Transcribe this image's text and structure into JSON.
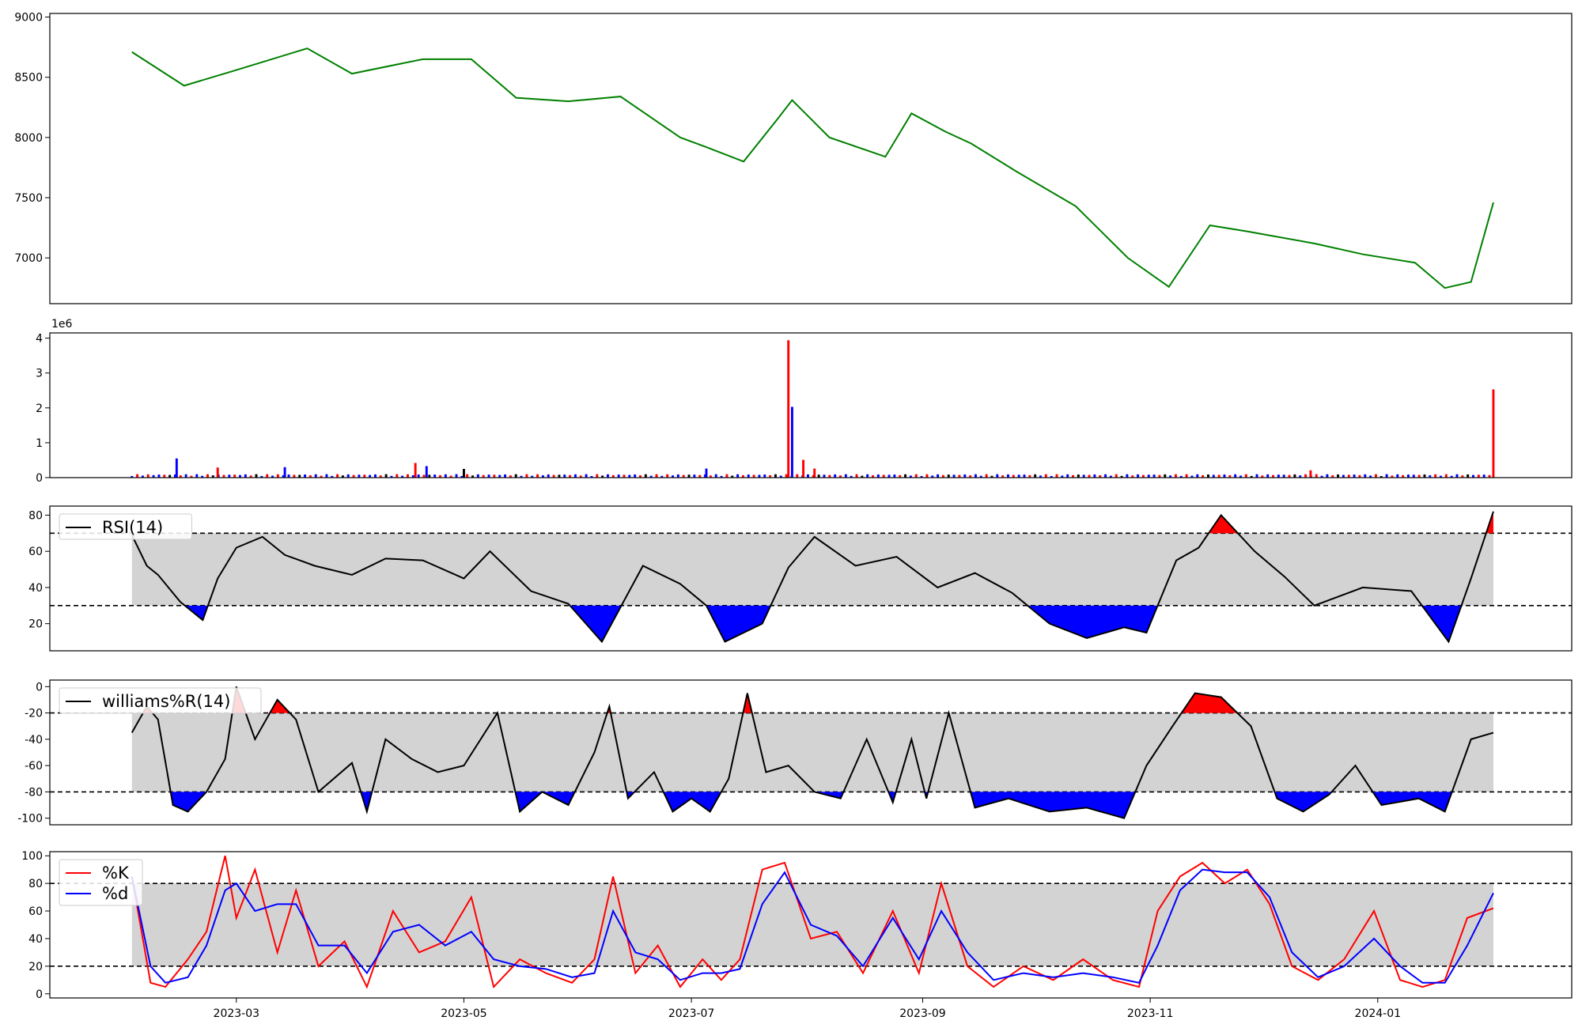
{
  "chart_data": [
    {
      "type": "line",
      "title": "",
      "xlabel": "",
      "ylabel": "",
      "ylim": [
        6620,
        9030
      ],
      "yticks": [
        7000,
        7500,
        8000,
        8500,
        9000
      ],
      "grid": false,
      "colors": {
        "line": "#008000"
      },
      "series": [
        {
          "x": [
            "2023-02-01",
            "2023-02-15",
            "2023-03-01",
            "2023-03-20",
            "2023-04-01",
            "2023-04-20",
            "2023-05-03",
            "2023-05-15",
            "2023-05-29",
            "2023-06-12",
            "2023-06-28",
            "2023-07-05",
            "2023-07-15",
            "2023-07-24",
            "2023-07-28",
            "2023-08-07",
            "2023-08-22",
            "2023-08-29",
            "2023-09-07",
            "2023-09-14",
            "2023-09-26",
            "2023-10-12",
            "2023-10-26",
            "2023-11-06",
            "2023-11-17",
            "2023-11-27",
            "2023-12-15",
            "2023-12-28",
            "2024-01-11",
            "2024-01-19",
            "2024-01-26",
            "2024-02-01"
          ],
          "values": [
            8710,
            8430,
            8560,
            8740,
            8530,
            8650,
            8650,
            8330,
            8300,
            8340,
            8000,
            7920,
            7800,
            8150,
            8310,
            8000,
            7840,
            8200,
            8050,
            7950,
            7720,
            7430,
            7000,
            6760,
            7270,
            7220,
            7120,
            7030,
            6960,
            6750,
            6800,
            7460
          ]
        }
      ]
    },
    {
      "type": "bar",
      "title": "",
      "xlabel": "",
      "ylabel": "",
      "ylim": [
        0,
        4150000
      ],
      "yticks": [
        0,
        1,
        2,
        3,
        4
      ],
      "yscale_label": "1e6",
      "colors": {
        "up": "#ff0000",
        "down": "#0000ff",
        "flat": "#000000"
      },
      "bars": [
        {
          "x": "2023-02-13",
          "value": 550000,
          "color": "down"
        },
        {
          "x": "2023-02-24",
          "value": 290000,
          "color": "up"
        },
        {
          "x": "2023-03-14",
          "value": 300000,
          "color": "down"
        },
        {
          "x": "2023-04-18",
          "value": 420000,
          "color": "up"
        },
        {
          "x": "2023-04-21",
          "value": 330000,
          "color": "down"
        },
        {
          "x": "2023-05-01",
          "value": 250000,
          "color": "flat"
        },
        {
          "x": "2023-07-05",
          "value": 260000,
          "color": "down"
        },
        {
          "x": "2023-07-27",
          "value": 3940000,
          "color": "up"
        },
        {
          "x": "2023-07-28",
          "value": 2030000,
          "color": "down"
        },
        {
          "x": "2023-07-31",
          "value": 510000,
          "color": "up"
        },
        {
          "x": "2023-08-03",
          "value": 260000,
          "color": "up"
        },
        {
          "x": "2023-12-14",
          "value": 210000,
          "color": "up"
        },
        {
          "x": "2024-02-01",
          "value": 2530000,
          "color": "up"
        }
      ],
      "baseline_volume": 90000
    },
    {
      "type": "line",
      "title": "",
      "xlabel": "",
      "ylabel": "",
      "ylim": [
        5,
        85
      ],
      "yticks": [
        20,
        40,
        60,
        80
      ],
      "thresholds": [
        30,
        70
      ],
      "legend": {
        "entries": [
          "RSI(14)"
        ],
        "placement": "upper-left"
      },
      "colors": {
        "line": "#000000",
        "band": "#d3d3d3",
        "overbought": "#ff0000",
        "oversold": "#0000ff"
      },
      "series": [
        {
          "name": "RSI(14)",
          "x": [
            "2023-02-01",
            "2023-02-05",
            "2023-02-08",
            "2023-02-14",
            "2023-02-20",
            "2023-02-24",
            "2023-03-01",
            "2023-03-08",
            "2023-03-14",
            "2023-03-22",
            "2023-04-01",
            "2023-04-10",
            "2023-04-20",
            "2023-05-01",
            "2023-05-08",
            "2023-05-19",
            "2023-05-29",
            "2023-06-07",
            "2023-06-18",
            "2023-06-28",
            "2023-07-05",
            "2023-07-10",
            "2023-07-20",
            "2023-07-27",
            "2023-08-03",
            "2023-08-14",
            "2023-08-25",
            "2023-09-05",
            "2023-09-15",
            "2023-09-25",
            "2023-10-05",
            "2023-10-15",
            "2023-10-25",
            "2023-10-31",
            "2023-11-08",
            "2023-11-14",
            "2023-11-20",
            "2023-11-29",
            "2023-12-07",
            "2023-12-15",
            "2023-12-28",
            "2024-01-10",
            "2024-01-20",
            "2024-01-26",
            "2024-02-01"
          ],
          "values": [
            69,
            52,
            47,
            32,
            22,
            45,
            62,
            68,
            58,
            52,
            47,
            56,
            55,
            45,
            60,
            38,
            31,
            10,
            52,
            42,
            30,
            10,
            20,
            51,
            68,
            52,
            57,
            40,
            48,
            37,
            20,
            12,
            18,
            15,
            55,
            62,
            80,
            60,
            46,
            30,
            40,
            38,
            10,
            45,
            82
          ]
        }
      ]
    },
    {
      "type": "line",
      "title": "",
      "xlabel": "",
      "ylabel": "",
      "ylim": [
        -105,
        5
      ],
      "yticks": [
        0,
        -20,
        -40,
        -60,
        -80,
        -100
      ],
      "thresholds": [
        -20,
        -80
      ],
      "legend": {
        "entries": [
          "williams%R(14)"
        ],
        "placement": "upper-left"
      },
      "colors": {
        "line": "#000000",
        "band": "#d3d3d3",
        "overbought": "#ff0000",
        "oversold": "#0000ff"
      },
      "series": [
        {
          "name": "williams%R(14)",
          "x": [
            "2023-02-01",
            "2023-02-05",
            "2023-02-08",
            "2023-02-12",
            "2023-02-16",
            "2023-02-21",
            "2023-02-26",
            "2023-03-01",
            "2023-03-06",
            "2023-03-12",
            "2023-03-17",
            "2023-03-23",
            "2023-04-01",
            "2023-04-05",
            "2023-04-10",
            "2023-04-17",
            "2023-04-24",
            "2023-05-01",
            "2023-05-10",
            "2023-05-16",
            "2023-05-22",
            "2023-05-29",
            "2023-06-05",
            "2023-06-09",
            "2023-06-14",
            "2023-06-21",
            "2023-06-26",
            "2023-07-01",
            "2023-07-06",
            "2023-07-11",
            "2023-07-16",
            "2023-07-21",
            "2023-07-27",
            "2023-08-03",
            "2023-08-10",
            "2023-08-17",
            "2023-08-24",
            "2023-08-29",
            "2023-09-02",
            "2023-09-08",
            "2023-09-15",
            "2023-09-24",
            "2023-10-05",
            "2023-10-15",
            "2023-10-25",
            "2023-10-31",
            "2023-11-07",
            "2023-11-13",
            "2023-11-20",
            "2023-11-28",
            "2023-12-05",
            "2023-12-12",
            "2023-12-19",
            "2023-12-26",
            "2024-01-02",
            "2024-01-12",
            "2024-01-19",
            "2024-01-26",
            "2024-02-01"
          ],
          "values": [
            -35,
            -15,
            -25,
            -90,
            -95,
            -80,
            -55,
            0,
            -40,
            -10,
            -25,
            -80,
            -58,
            -95,
            -40,
            -55,
            -65,
            -60,
            -20,
            -95,
            -80,
            -90,
            -50,
            -15,
            -85,
            -65,
            -95,
            -85,
            -95,
            -70,
            -5,
            -65,
            -60,
            -80,
            -85,
            -40,
            -88,
            -40,
            -85,
            -20,
            -92,
            -85,
            -95,
            -92,
            -100,
            -60,
            -30,
            -5,
            -8,
            -30,
            -85,
            -95,
            -82,
            -60,
            -90,
            -85,
            -95,
            -40,
            -35
          ]
        }
      ]
    },
    {
      "type": "line",
      "title": "",
      "xlabel": "",
      "ylabel": "",
      "ylim": [
        -3,
        103
      ],
      "yticks": [
        0,
        20,
        40,
        60,
        80,
        100
      ],
      "thresholds": [
        20,
        80
      ],
      "xticks": [
        "2023-03",
        "2023-05",
        "2023-07",
        "2023-09",
        "2023-11",
        "2024-01"
      ],
      "legend": {
        "entries": [
          "%K",
          "%d"
        ],
        "placement": "upper-left"
      },
      "colors": {
        "k": "#ff0000",
        "d": "#0000ff",
        "band": "#d3d3d3"
      },
      "series": [
        {
          "name": "%K",
          "x": [
            "2023-02-01",
            "2023-02-06",
            "2023-02-10",
            "2023-02-16",
            "2023-02-21",
            "2023-02-26",
            "2023-03-01",
            "2023-03-06",
            "2023-03-12",
            "2023-03-17",
            "2023-03-23",
            "2023-03-30",
            "2023-04-05",
            "2023-04-12",
            "2023-04-19",
            "2023-04-26",
            "2023-05-03",
            "2023-05-09",
            "2023-05-16",
            "2023-05-23",
            "2023-05-30",
            "2023-06-05",
            "2023-06-10",
            "2023-06-16",
            "2023-06-22",
            "2023-06-28",
            "2023-07-04",
            "2023-07-09",
            "2023-07-14",
            "2023-07-20",
            "2023-07-26",
            "2023-08-02",
            "2023-08-09",
            "2023-08-16",
            "2023-08-24",
            "2023-08-31",
            "2023-09-06",
            "2023-09-13",
            "2023-09-20",
            "2023-09-28",
            "2023-10-06",
            "2023-10-14",
            "2023-10-22",
            "2023-10-29",
            "2023-11-03",
            "2023-11-09",
            "2023-11-15",
            "2023-11-21",
            "2023-11-27",
            "2023-12-03",
            "2023-12-09",
            "2023-12-16",
            "2023-12-23",
            "2023-12-31",
            "2024-01-07",
            "2024-01-13",
            "2024-01-19",
            "2024-01-25",
            "2024-02-01"
          ],
          "values": [
            85,
            8,
            5,
            25,
            45,
            100,
            55,
            90,
            30,
            75,
            20,
            38,
            5,
            60,
            30,
            38,
            70,
            5,
            25,
            15,
            8,
            25,
            85,
            15,
            35,
            5,
            25,
            10,
            25,
            90,
            95,
            40,
            45,
            15,
            60,
            15,
            80,
            20,
            5,
            20,
            10,
            25,
            10,
            5,
            60,
            85,
            95,
            80,
            90,
            65,
            20,
            10,
            25,
            60,
            10,
            5,
            10,
            55,
            62
          ]
        },
        {
          "name": "%d",
          "x": [
            "2023-02-01",
            "2023-02-06",
            "2023-02-10",
            "2023-02-16",
            "2023-02-21",
            "2023-02-26",
            "2023-03-01",
            "2023-03-06",
            "2023-03-12",
            "2023-03-17",
            "2023-03-23",
            "2023-03-30",
            "2023-04-05",
            "2023-04-12",
            "2023-04-19",
            "2023-04-26",
            "2023-05-03",
            "2023-05-09",
            "2023-05-16",
            "2023-05-23",
            "2023-05-30",
            "2023-06-05",
            "2023-06-10",
            "2023-06-16",
            "2023-06-22",
            "2023-06-28",
            "2023-07-04",
            "2023-07-09",
            "2023-07-14",
            "2023-07-20",
            "2023-07-26",
            "2023-08-02",
            "2023-08-09",
            "2023-08-16",
            "2023-08-24",
            "2023-08-31",
            "2023-09-06",
            "2023-09-13",
            "2023-09-20",
            "2023-09-28",
            "2023-10-06",
            "2023-10-14",
            "2023-10-22",
            "2023-10-29",
            "2023-11-03",
            "2023-11-09",
            "2023-11-15",
            "2023-11-21",
            "2023-11-27",
            "2023-12-03",
            "2023-12-09",
            "2023-12-16",
            "2023-12-23",
            "2023-12-31",
            "2024-01-07",
            "2024-01-13",
            "2024-01-19",
            "2024-01-25",
            "2024-02-01"
          ],
          "values": [
            85,
            20,
            8,
            12,
            35,
            75,
            80,
            60,
            65,
            65,
            35,
            35,
            15,
            45,
            50,
            35,
            45,
            25,
            20,
            18,
            12,
            15,
            60,
            30,
            25,
            10,
            15,
            15,
            18,
            65,
            88,
            50,
            42,
            20,
            55,
            25,
            60,
            30,
            10,
            15,
            12,
            15,
            12,
            8,
            35,
            75,
            90,
            88,
            88,
            70,
            30,
            12,
            20,
            40,
            20,
            8,
            8,
            35,
            73
          ]
        }
      ]
    }
  ]
}
